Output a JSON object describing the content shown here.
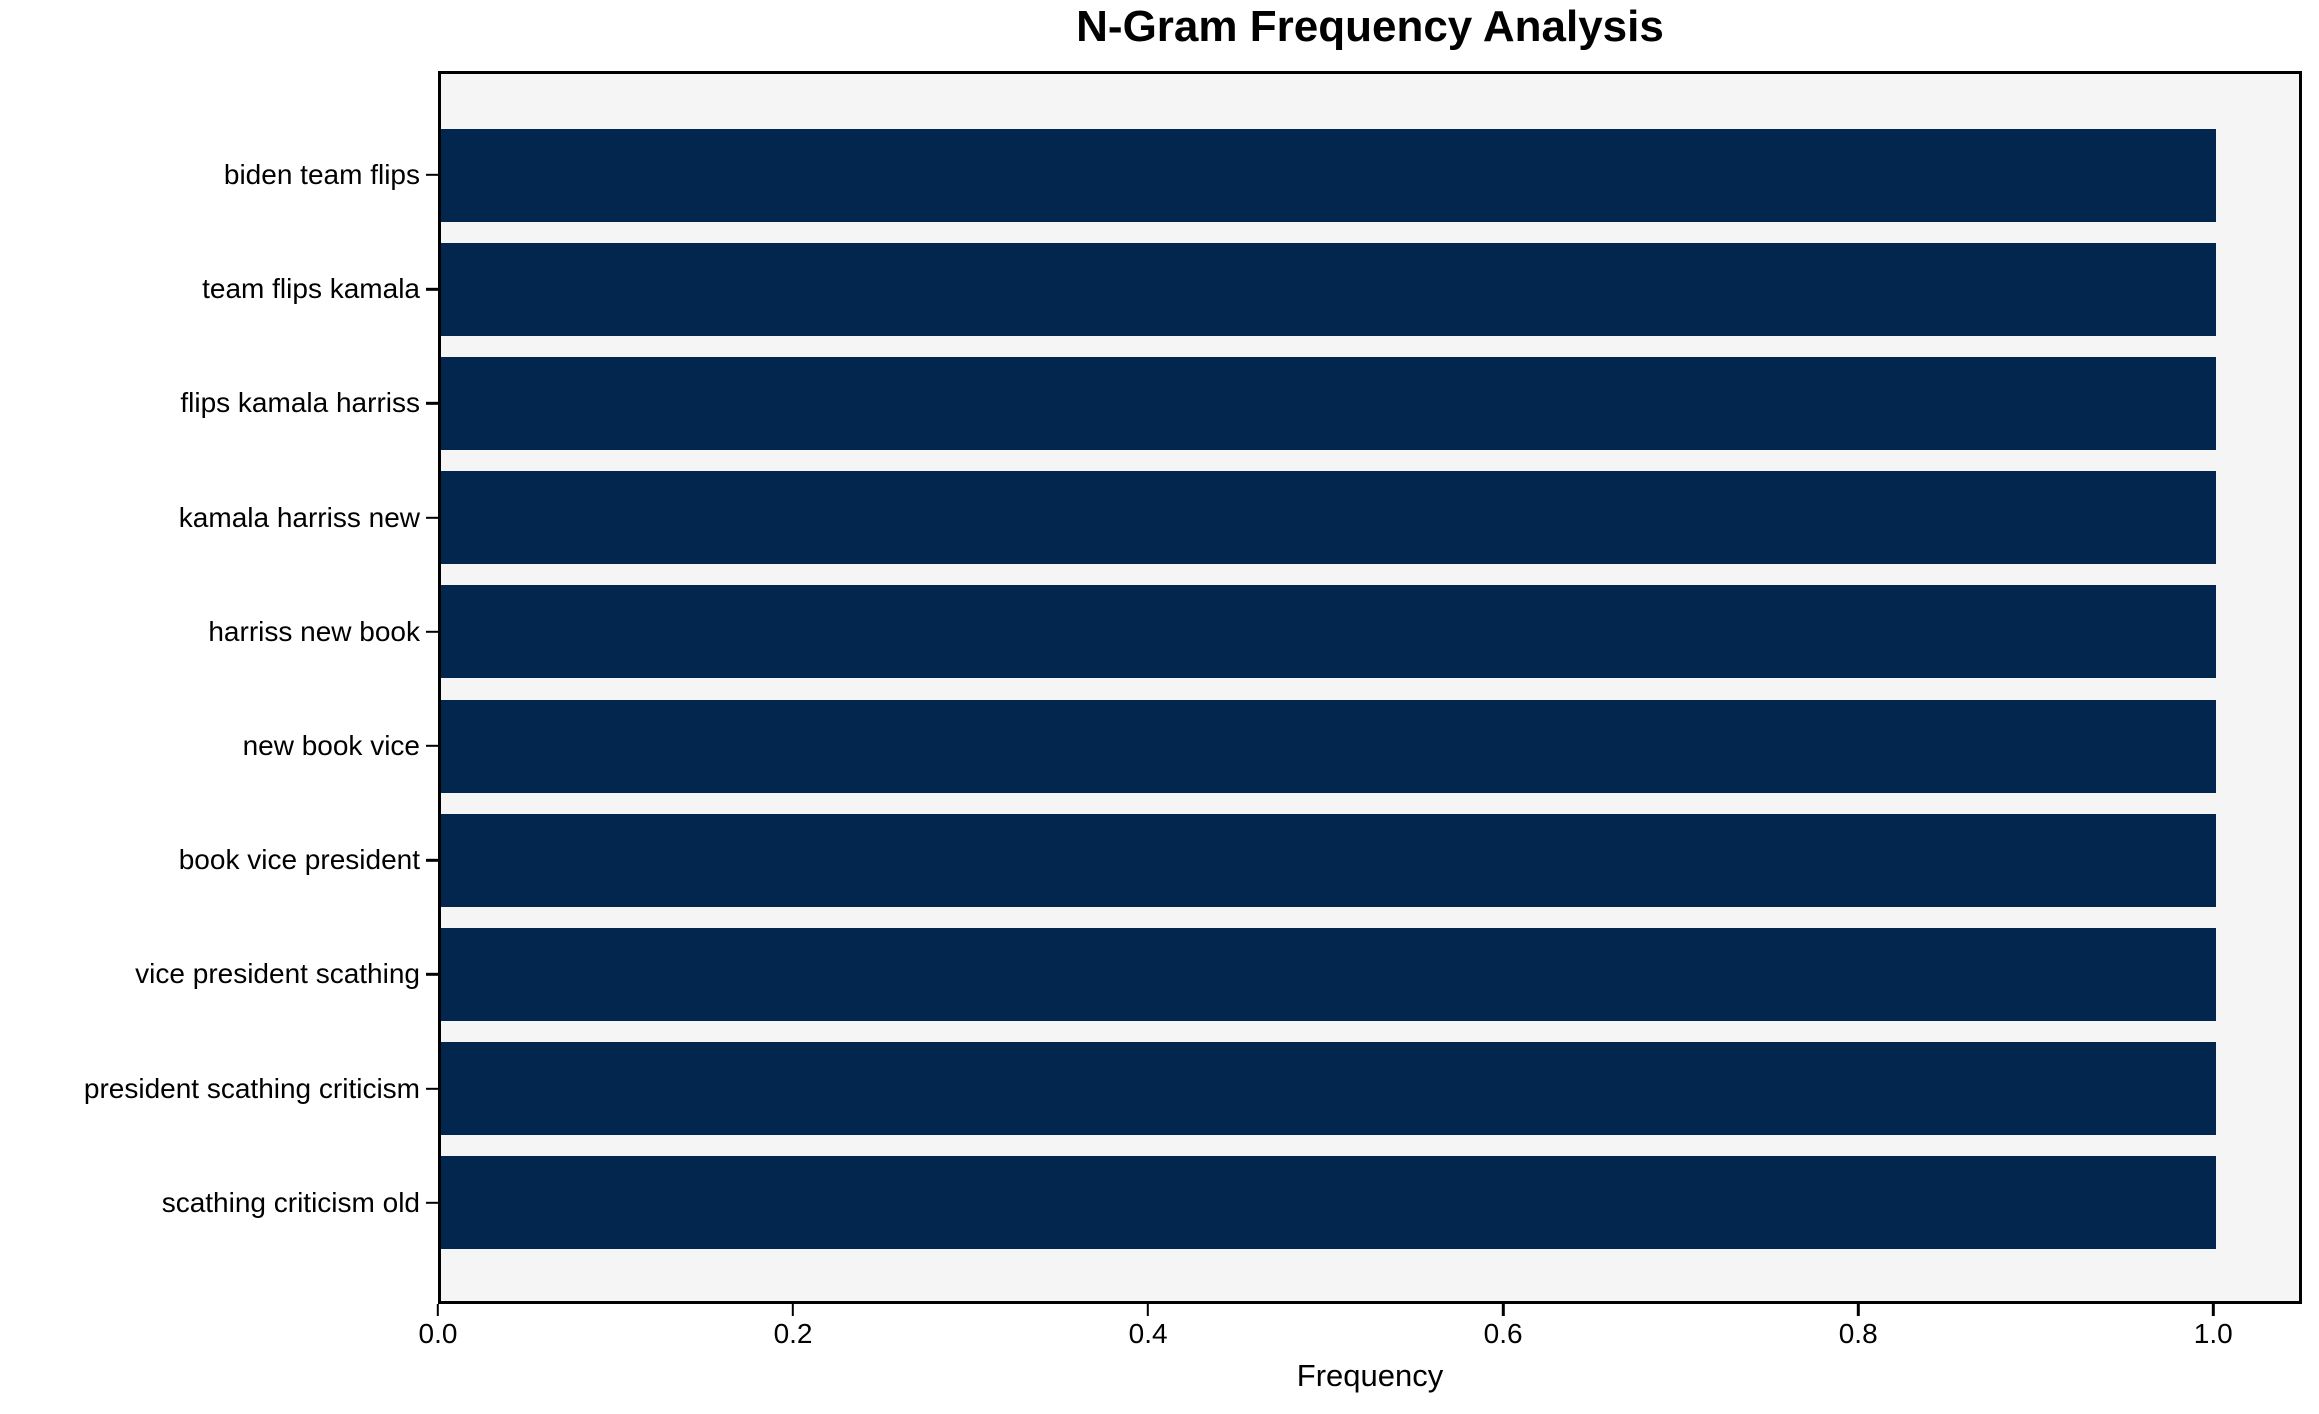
{
  "chart_data": {
    "type": "bar",
    "orientation": "horizontal",
    "title": "N-Gram Frequency Analysis",
    "xlabel": "Frequency",
    "ylabel": "",
    "categories": [
      "biden team flips",
      "team flips kamala",
      "flips kamala harriss",
      "kamala harriss new",
      "harriss new book",
      "new book vice",
      "book vice president",
      "vice president scathing",
      "president scathing criticism",
      "scathing criticism old"
    ],
    "values": [
      1.0,
      1.0,
      1.0,
      1.0,
      1.0,
      1.0,
      1.0,
      1.0,
      1.0,
      1.0
    ],
    "xticks": [
      "0.0",
      "0.2",
      "0.4",
      "0.6",
      "0.8",
      "1.0"
    ],
    "xtick_values": [
      0.0,
      0.2,
      0.4,
      0.6,
      0.8,
      1.0
    ],
    "xlim": [
      0,
      1.05
    ],
    "grid": false,
    "legend": null,
    "colors": {
      "bar": "#02264d",
      "plot_background": "#f5f5f5",
      "figure_background": "#ffffff",
      "spine": "#000000",
      "text": "#000000"
    }
  }
}
